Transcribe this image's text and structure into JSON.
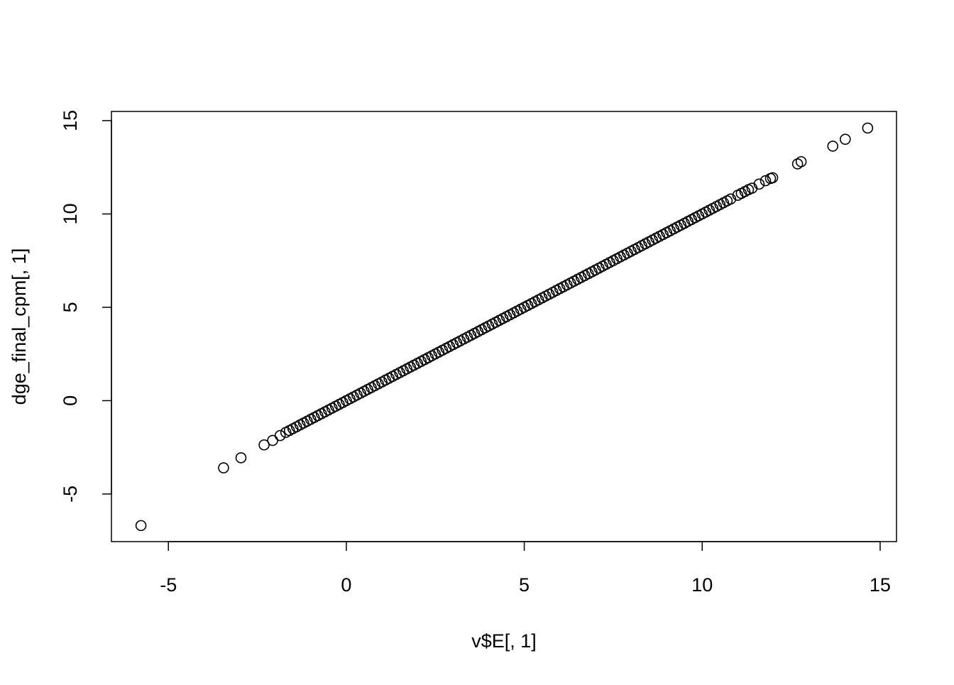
{
  "chart_data": {
    "type": "scatter",
    "x_label": "v$E[, 1]",
    "y_label": "dge_final_cpm[, 1]",
    "color": "#000000",
    "x": [
      -5.77,
      -3.45,
      -2.96,
      -2.31,
      -2.07,
      -1.86,
      -1.7,
      -1.6,
      -1.5,
      -1.4,
      -1.3,
      -1.2,
      -1.1,
      -1,
      -0.9,
      -0.8,
      -0.7,
      -0.6,
      -0.5,
      -0.4,
      -0.3,
      -0.2,
      -0.1,
      0,
      0.1,
      0.2,
      0.3,
      0.4,
      0.5,
      0.6,
      0.7,
      0.8,
      0.9,
      1,
      1.1,
      1.2,
      1.3,
      1.4,
      1.5,
      1.6,
      1.7,
      1.8,
      1.9,
      2,
      2.1,
      2.2,
      2.3,
      2.4,
      2.5,
      2.6,
      2.7,
      2.8,
      2.9,
      3,
      3.1,
      3.2,
      3.3,
      3.4,
      3.5,
      3.6,
      3.7,
      3.8,
      3.9,
      4,
      4.1,
      4.2,
      4.3,
      4.4,
      4.5,
      4.6,
      4.7,
      4.8,
      4.9,
      5,
      5.1,
      5.2,
      5.3,
      5.4,
      5.5,
      5.6,
      5.7,
      5.8,
      5.9,
      6,
      6.1,
      6.2,
      6.3,
      6.4,
      6.5,
      6.6,
      6.7,
      6.8,
      6.9,
      7,
      7.1,
      7.2,
      7.3,
      7.4,
      7.5,
      7.6,
      7.7,
      7.8,
      7.9,
      8,
      8.1,
      8.2,
      8.3,
      8.4,
      8.5,
      8.6,
      8.7,
      8.8,
      8.9,
      9,
      9.1,
      9.2,
      9.3,
      9.4,
      9.5,
      9.6,
      9.7,
      9.8,
      9.9,
      10,
      10.1,
      10.2,
      10.3,
      10.4,
      10.5,
      10.6,
      10.7,
      10.8,
      11,
      11.1,
      11.2,
      11.3,
      11.4,
      11.6,
      11.78,
      11.92,
      11.98,
      12.68,
      12.78,
      13.67,
      14.02,
      14.65
    ],
    "y": [
      -6.69,
      -3.6,
      -3.06,
      -2.37,
      -2.13,
      -1.87,
      -1.7,
      -1.6,
      -1.5,
      -1.4,
      -1.3,
      -1.2,
      -1.1,
      -1,
      -0.9,
      -0.8,
      -0.7,
      -0.6,
      -0.5,
      -0.4,
      -0.3,
      -0.2,
      -0.1,
      0,
      0.1,
      0.2,
      0.3,
      0.4,
      0.5,
      0.6,
      0.7,
      0.8,
      0.9,
      1,
      1.1,
      1.2,
      1.3,
      1.4,
      1.5,
      1.6,
      1.7,
      1.8,
      1.9,
      2,
      2.1,
      2.2,
      2.3,
      2.4,
      2.5,
      2.6,
      2.7,
      2.8,
      2.9,
      3,
      3.1,
      3.2,
      3.3,
      3.4,
      3.5,
      3.6,
      3.7,
      3.8,
      3.9,
      4,
      4.1,
      4.2,
      4.3,
      4.4,
      4.5,
      4.6,
      4.7,
      4.8,
      4.9,
      5,
      5.1,
      5.2,
      5.3,
      5.4,
      5.5,
      5.6,
      5.7,
      5.8,
      5.9,
      6,
      6.1,
      6.2,
      6.3,
      6.4,
      6.5,
      6.6,
      6.7,
      6.8,
      6.9,
      7,
      7.1,
      7.2,
      7.3,
      7.4,
      7.5,
      7.6,
      7.7,
      7.8,
      7.9,
      8,
      8.1,
      8.2,
      8.3,
      8.4,
      8.5,
      8.6,
      8.7,
      8.8,
      8.9,
      9,
      9.1,
      9.2,
      9.3,
      9.4,
      9.5,
      9.6,
      9.7,
      9.8,
      9.9,
      10,
      10.1,
      10.2,
      10.3,
      10.4,
      10.5,
      10.6,
      10.7,
      10.8,
      11,
      11.1,
      11.2,
      11.3,
      11.38,
      11.6,
      11.78,
      11.9,
      11.94,
      12.68,
      12.8,
      13.63,
      14,
      14.6
    ],
    "xlim": [
      -6.6,
      15.46
    ],
    "ylim": [
      -7.55,
      15.49
    ],
    "xticks": [
      -5,
      0,
      5,
      10,
      15
    ],
    "yticks": [
      -5,
      0,
      5,
      10,
      15
    ]
  }
}
